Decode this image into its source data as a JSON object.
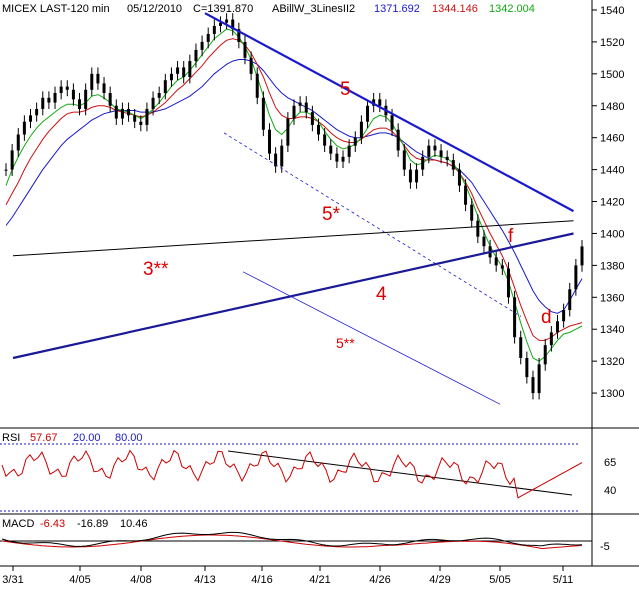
{
  "header": {
    "symbol": "MICEX LAST-120 min",
    "date": "05/12/2010",
    "close": "C=1391.870",
    "indicator_name": "ABillW_3LinesII2",
    "line1_value": "1371.692",
    "line2_value": "1344.146",
    "line3_value": "1342.004"
  },
  "colors": {
    "text": "#000000",
    "line1": "#1a1acc",
    "line2": "#cc1111",
    "line3": "#11aa11",
    "rsi": "#cc0000",
    "trendline": "#1a1acc",
    "annotation": "#dd0000",
    "band": "#1a1acc"
  },
  "rsi": {
    "label": "RSI",
    "value": "57.67",
    "lower": "20.00",
    "upper": "80.00",
    "ticks": [
      "65",
      "40"
    ]
  },
  "macd": {
    "label": "MACD",
    "v1": "-6.43",
    "v2": "-16.89",
    "v3": "10.46",
    "tick": "-5"
  },
  "annotations": [
    {
      "text": "5"
    },
    {
      "text": "5*"
    },
    {
      "text": "3**"
    },
    {
      "text": "4"
    },
    {
      "text": "5**"
    },
    {
      "text": "f"
    },
    {
      "text": "d"
    }
  ],
  "chart_data": {
    "type": "line",
    "title": "MICEX LAST-120 min",
    "ylim": [
      1280,
      1545
    ],
    "y_ticks": [
      1540,
      1520,
      1500,
      1480,
      1460,
      1440,
      1420,
      1400,
      1380,
      1360,
      1340,
      1320,
      1300
    ],
    "x_ticks": [
      "3/31",
      "4/05",
      "4/08",
      "4/13",
      "4/16",
      "4/21",
      "4/26",
      "4/29",
      "5/05",
      "5/11"
    ],
    "grid": false,
    "series": [
      {
        "name": "Close",
        "values": [
          1440,
          1452,
          1462,
          1470,
          1474,
          1478,
          1485,
          1482,
          1488,
          1492,
          1490,
          1484,
          1478,
          1490,
          1500,
          1494,
          1488,
          1480,
          1472,
          1478,
          1474,
          1470,
          1468,
          1478,
          1485,
          1488,
          1496,
          1500,
          1504,
          1498,
          1508,
          1515,
          1520,
          1525,
          1530,
          1532,
          1534,
          1528,
          1520,
          1510,
          1500,
          1485,
          1465,
          1450,
          1442,
          1455,
          1472,
          1480,
          1482,
          1476,
          1468,
          1462,
          1455,
          1450,
          1445,
          1448,
          1455,
          1460,
          1470,
          1480,
          1484,
          1480,
          1474,
          1465,
          1452,
          1440,
          1432,
          1440,
          1448,
          1455,
          1452,
          1448,
          1446,
          1440,
          1430,
          1418,
          1408,
          1398,
          1392,
          1385,
          1380,
          1378,
          1360,
          1335,
          1322,
          1310,
          1300,
          1318,
          1330,
          1338,
          1345,
          1352,
          1365,
          1380,
          1391.87
        ]
      },
      {
        "name": "ABillW_3LinesII2 1371.692",
        "values": [
          1405,
          1410,
          1416,
          1422,
          1428,
          1434,
          1440,
          1445,
          1450,
          1455,
          1459,
          1462,
          1465,
          1468,
          1471,
          1473,
          1475,
          1476,
          1477,
          1477,
          1477,
          1477,
          1476,
          1476,
          1476,
          1477,
          1478,
          1480,
          1482,
          1484,
          1486,
          1489,
          1492,
          1496,
          1500,
          1503,
          1506,
          1508,
          1509,
          1509,
          1508,
          1506,
          1502,
          1497,
          1492,
          1488,
          1485,
          1483,
          1481,
          1479,
          1477,
          1474,
          1471,
          1468,
          1465,
          1463,
          1461,
          1460,
          1460,
          1461,
          1462,
          1463,
          1463,
          1462,
          1460,
          1457,
          1454,
          1451,
          1449,
          1447,
          1446,
          1445,
          1444,
          1442,
          1440,
          1436,
          1432,
          1426,
          1420,
          1414,
          1408,
          1402,
          1395,
          1388,
          1380,
          1372,
          1364,
          1358,
          1354,
          1351,
          1350,
          1352,
          1358,
          1365,
          1371.692
        ]
      },
      {
        "name": "ABillW_3LinesII2 1344.146",
        "values": [
          1418,
          1425,
          1432,
          1440,
          1447,
          1453,
          1459,
          1464,
          1468,
          1472,
          1475,
          1476,
          1476,
          1477,
          1479,
          1480,
          1480,
          1479,
          1477,
          1476,
          1475,
          1474,
          1473,
          1474,
          1476,
          1479,
          1482,
          1486,
          1490,
          1493,
          1497,
          1501,
          1505,
          1510,
          1514,
          1518,
          1521,
          1522,
          1521,
          1518,
          1513,
          1506,
          1498,
          1488,
          1479,
          1474,
          1472,
          1472,
          1473,
          1473,
          1472,
          1470,
          1467,
          1463,
          1460,
          1458,
          1457,
          1457,
          1459,
          1462,
          1465,
          1466,
          1466,
          1464,
          1460,
          1455,
          1450,
          1447,
          1446,
          1446,
          1446,
          1445,
          1444,
          1442,
          1438,
          1432,
          1425,
          1416,
          1408,
          1400,
          1393,
          1386,
          1377,
          1366,
          1355,
          1345,
          1336,
          1333,
          1333,
          1335,
          1338,
          1340,
          1342,
          1343,
          1344.146
        ]
      },
      {
        "name": "ABillW_3LinesII2 1342.004",
        "values": [
          1430,
          1440,
          1448,
          1455,
          1461,
          1466,
          1470,
          1473,
          1476,
          1479,
          1481,
          1481,
          1480,
          1482,
          1486,
          1487,
          1485,
          1482,
          1478,
          1477,
          1476,
          1474,
          1472,
          1474,
          1478,
          1482,
          1487,
          1492,
          1496,
          1498,
          1502,
          1507,
          1512,
          1517,
          1522,
          1525,
          1528,
          1527,
          1523,
          1517,
          1509,
          1498,
          1486,
          1474,
          1465,
          1462,
          1466,
          1472,
          1476,
          1476,
          1474,
          1470,
          1464,
          1459,
          1455,
          1453,
          1454,
          1456,
          1460,
          1466,
          1472,
          1474,
          1473,
          1469,
          1462,
          1454,
          1446,
          1443,
          1444,
          1447,
          1449,
          1448,
          1447,
          1444,
          1438,
          1430,
          1421,
          1411,
          1401,
          1392,
          1385,
          1379,
          1370,
          1357,
          1344,
          1332,
          1322,
          1320,
          1323,
          1328,
          1333,
          1337,
          1338,
          1340,
          1342.004
        ]
      }
    ],
    "trendlines": [
      {
        "label": "5",
        "from": {
          "x": "4/13",
          "y": 1538
        },
        "to": {
          "x": "5/12",
          "y": 1414
        }
      },
      {
        "label": "4",
        "from": {
          "x": "3/31",
          "y": 1322
        },
        "to": {
          "x": "5/12",
          "y": 1400
        }
      },
      {
        "label": "3**",
        "from": {
          "x": "3/31",
          "y": 1386
        },
        "to": {
          "x": "5/12",
          "y": 1408
        }
      },
      {
        "label": "5*",
        "from": {
          "x": "4/14",
          "y": 1463
        },
        "to": {
          "x": "5/07",
          "y": 1348
        }
      },
      {
        "label": "5**",
        "from": {
          "x": "4/15",
          "y": 1376
        },
        "to": {
          "x": "5/05",
          "y": 1293
        }
      }
    ]
  }
}
